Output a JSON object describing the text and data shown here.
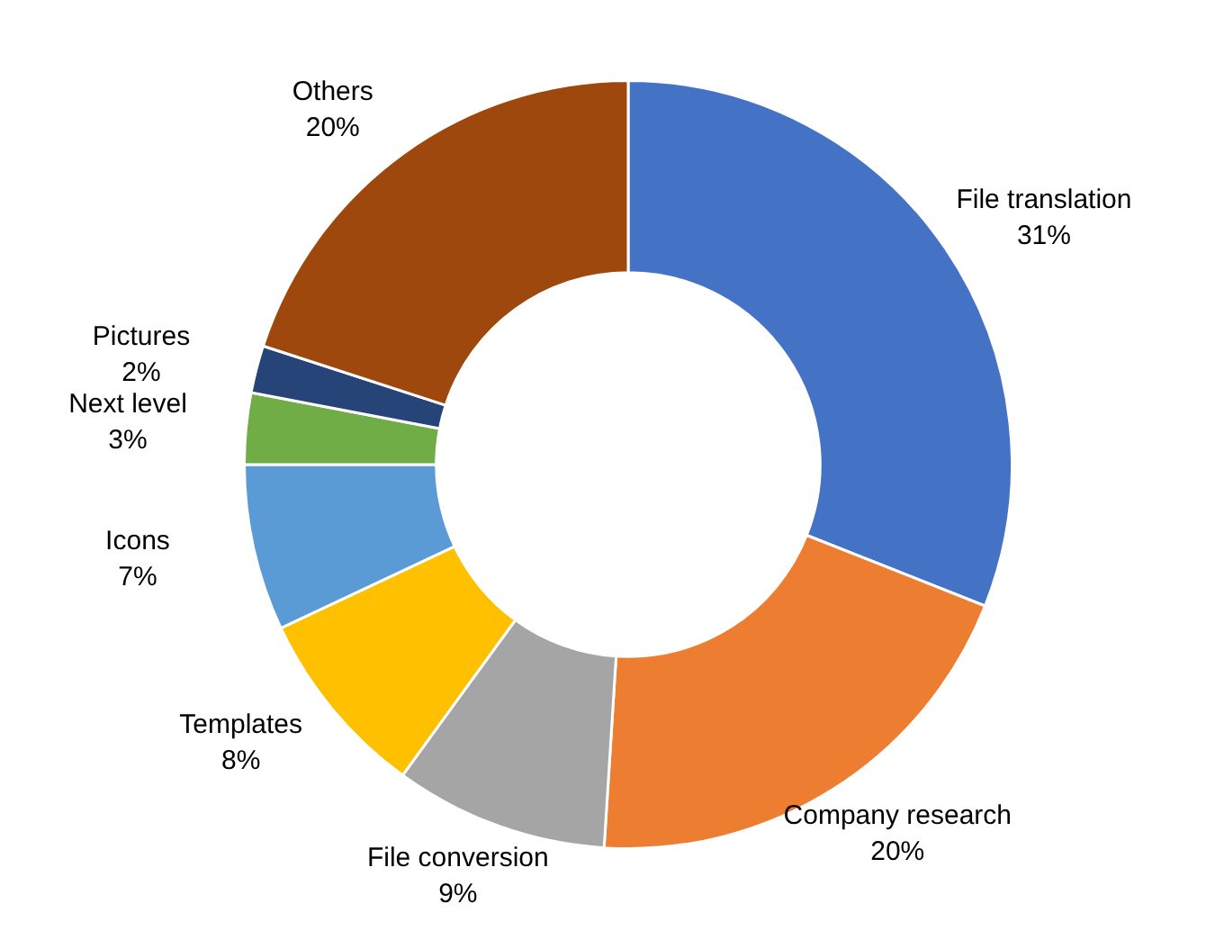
{
  "chart_data": {
    "type": "donut",
    "categories": [
      "File translation",
      "Company research",
      "File conversion",
      "Templates",
      "Icons",
      "Next level",
      "Pictures",
      "Others"
    ],
    "values": [
      31,
      20,
      9,
      8,
      7,
      3,
      2,
      20
    ],
    "value_labels": [
      "31%",
      "20%",
      "9%",
      "8%",
      "7%",
      "3%",
      "2%",
      "20%"
    ],
    "colors": [
      "#4472c4",
      "#ed7d31",
      "#a5a5a5",
      "#ffc000",
      "#5b9bd5",
      "#70ad47",
      "#264478",
      "#9e480e"
    ]
  }
}
